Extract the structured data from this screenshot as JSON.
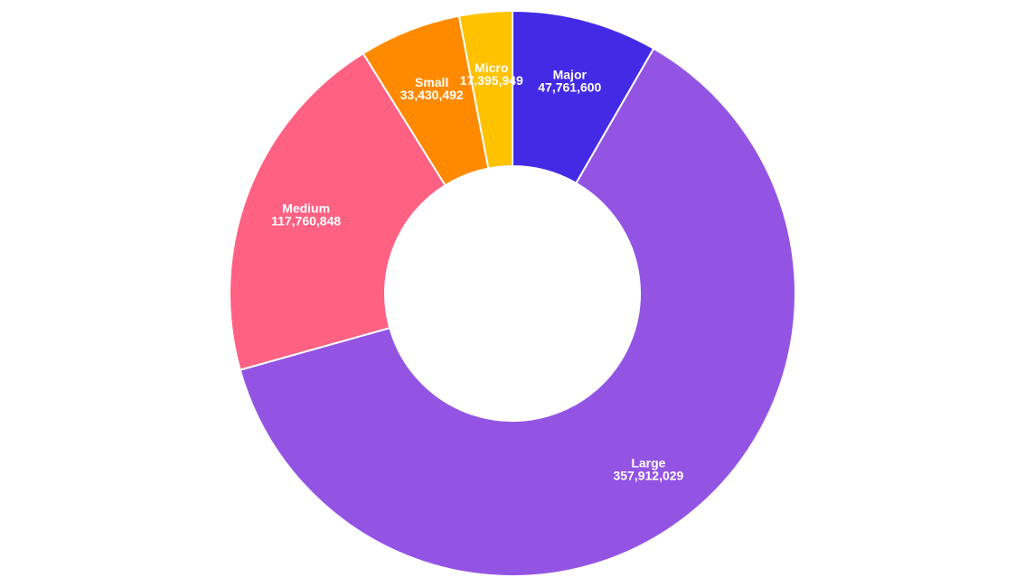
{
  "chart_data": {
    "type": "pie",
    "variant": "donut",
    "title": "",
    "start_angle_deg": 0,
    "direction": "clockwise",
    "slices": [
      {
        "name": "Major",
        "value": 47761600,
        "label_value": "47,761,600",
        "color": "#432BE6"
      },
      {
        "name": "Large",
        "value": 357912029,
        "label_value": "357,912,029",
        "color": "#9354E4"
      },
      {
        "name": "Medium",
        "value": 117760848,
        "label_value": "117,760,848",
        "color": "#FF6183"
      },
      {
        "name": "Small",
        "value": 33430492,
        "label_value": "33,430,492",
        "color": "#FF8A00"
      },
      {
        "name": "Micro",
        "value": 17395949,
        "label_value": "17,395,949",
        "color": "#FFC200"
      }
    ]
  }
}
